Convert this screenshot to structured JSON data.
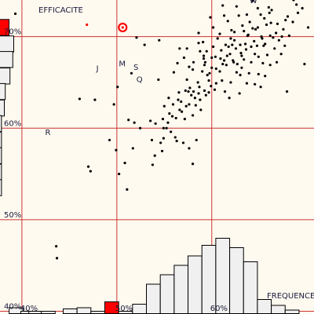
{
  "chart_data": {
    "type": "scatter",
    "ylabel": "EFFICACITE",
    "xlabel": "FREQUENCE",
    "xlim": [
      30,
      73
    ],
    "ylim": [
      39.7,
      74
    ],
    "x_ticks": [
      {
        "value": 33,
        "label": "40%"
      },
      {
        "value": 46,
        "label": "50%"
      },
      {
        "value": 59,
        "label": "60%"
      }
    ],
    "y_ticks": [
      {
        "value": 40,
        "label": "40%"
      },
      {
        "value": 50,
        "label": "50%"
      },
      {
        "value": 60,
        "label": "60%"
      },
      {
        "value": 70,
        "label": "70%"
      }
    ],
    "grid": true,
    "annotations": [
      {
        "text": "W",
        "x": 64.5,
        "y": 74
      },
      {
        "text": "J",
        "x": 43.5,
        "y": 66.6
      },
      {
        "text": "M",
        "x": 46.6,
        "y": 67.1
      },
      {
        "text": "S",
        "x": 48.6,
        "y": 66.7
      },
      {
        "text": "Q",
        "x": 49.0,
        "y": 65.4
      },
      {
        "text": "R",
        "x": 36.5,
        "y": 59.6
      }
    ],
    "highlight_point": {
      "x": 46.8,
      "y": 71.0,
      "color": "#ff0000"
    },
    "red_point": {
      "x": 41.9,
      "y": 71.3
    },
    "points": [
      [
        32.1,
        72.5
      ],
      [
        40.9,
        63.2
      ],
      [
        43.0,
        63.1
      ],
      [
        45.6,
        62.6
      ],
      [
        48.7,
        69.9
      ],
      [
        42.1,
        55.8
      ],
      [
        42.4,
        55.3
      ],
      [
        37.8,
        45.8
      ],
      [
        45.0,
        58.7
      ],
      [
        45.9,
        57.6
      ],
      [
        46.3,
        55.0
      ],
      [
        50.9,
        56.0
      ],
      [
        52.4,
        58.9
      ],
      [
        51.3,
        60.5
      ],
      [
        52.2,
        57.5
      ],
      [
        51.2,
        57.0
      ],
      [
        51.8,
        69.6
      ],
      [
        54.0,
        59.0
      ],
      [
        52.0,
        58.4
      ],
      [
        50.6,
        60.8
      ],
      [
        49.8,
        69.1
      ],
      [
        48.0,
        66.0
      ],
      [
        51.7,
        65.3
      ],
      [
        53.8,
        66.1
      ],
      [
        54.6,
        68.7
      ],
      [
        54.3,
        67.1
      ],
      [
        52.5,
        62.4
      ],
      [
        53.1,
        63.3
      ],
      [
        55.6,
        68.7
      ],
      [
        57.2,
        69.3
      ],
      [
        57.4,
        68.4
      ],
      [
        56.5,
        67.2
      ],
      [
        55.9,
        66.7
      ],
      [
        55.6,
        65.3
      ],
      [
        54.5,
        63.9
      ],
      [
        54.8,
        62.9
      ],
      [
        55.9,
        62.6
      ],
      [
        56.7,
        63.3
      ],
      [
        56.0,
        64.4
      ],
      [
        55.4,
        64.1
      ],
      [
        57.1,
        65.0
      ],
      [
        57.7,
        66.2
      ],
      [
        57.9,
        67.6
      ],
      [
        58.3,
        68.4
      ],
      [
        57.8,
        69.4
      ],
      [
        57.2,
        70.4
      ],
      [
        59.2,
        71.0
      ],
      [
        60.1,
        70.3
      ],
      [
        59.2,
        68.9
      ],
      [
        59.5,
        67.8
      ],
      [
        59.0,
        66.6
      ],
      [
        58.6,
        65.2
      ],
      [
        58.0,
        64.1
      ],
      [
        57.4,
        63.1
      ],
      [
        58.6,
        63.9
      ],
      [
        59.6,
        64.9
      ],
      [
        60.1,
        66.2
      ],
      [
        60.7,
        67.4
      ],
      [
        61.5,
        68.1
      ],
      [
        61.8,
        69.1
      ],
      [
        62.1,
        70.5
      ],
      [
        61.2,
        71.7
      ],
      [
        62.7,
        72.3
      ],
      [
        63.2,
        71.2
      ],
      [
        64.0,
        70.2
      ],
      [
        63.6,
        69.2
      ],
      [
        63.0,
        68.2
      ],
      [
        62.5,
        67.0
      ],
      [
        62.4,
        66.1
      ],
      [
        61.6,
        65.0
      ],
      [
        60.8,
        64.0
      ],
      [
        61.4,
        63.3
      ],
      [
        62.8,
        63.8
      ],
      [
        63.8,
        64.9
      ],
      [
        64.1,
        66.0
      ],
      [
        64.4,
        67.2
      ],
      [
        64.9,
        68.1
      ],
      [
        65.2,
        69.0
      ],
      [
        65.8,
        70.0
      ],
      [
        66.5,
        71.3
      ],
      [
        65.7,
        72.4
      ],
      [
        66.9,
        72.6
      ],
      [
        67.1,
        71.5
      ],
      [
        67.8,
        70.4
      ],
      [
        68.2,
        69.6
      ],
      [
        67.6,
        68.7
      ],
      [
        66.6,
        68.0
      ],
      [
        66.0,
        67.1
      ],
      [
        65.4,
        65.9
      ],
      [
        64.9,
        64.8
      ],
      [
        65.7,
        64.5
      ],
      [
        66.3,
        65.7
      ],
      [
        67.0,
        66.9
      ],
      [
        67.9,
        67.2
      ],
      [
        68.5,
        68.1
      ],
      [
        69.0,
        69.0
      ],
      [
        69.6,
        70.1
      ],
      [
        70.1,
        71.6
      ],
      [
        70.8,
        72.6
      ],
      [
        71.4,
        73.1
      ],
      [
        72.2,
        71.0
      ],
      [
        71.7,
        67.0
      ],
      [
        69.3,
        64.0
      ],
      [
        66.8,
        73.2
      ],
      [
        64.6,
        73.9
      ],
      [
        70.2,
        74.0
      ],
      [
        72.9,
        75.0
      ],
      [
        60.5,
        73.4
      ],
      [
        58.8,
        72.1
      ],
      [
        60.7,
        72.3
      ],
      [
        61.7,
        70.7
      ],
      [
        62.9,
        69.1
      ],
      [
        64.8,
        69.5
      ],
      [
        65.3,
        71.0
      ],
      [
        63.8,
        72.4
      ],
      [
        62.4,
        73.3
      ],
      [
        64.2,
        71.6
      ],
      [
        65.0,
        70.8
      ],
      [
        66.3,
        69.2
      ],
      [
        65.9,
        69.8
      ],
      [
        63.4,
        67.5
      ],
      [
        60.2,
        67.6
      ],
      [
        59.6,
        66.5
      ],
      [
        58.4,
        65.8
      ],
      [
        58.9,
        64.6
      ],
      [
        57.3,
        64.5
      ],
      [
        56.5,
        64.0
      ],
      [
        55.5,
        62.4
      ],
      [
        54.9,
        61.8
      ],
      [
        54.1,
        61.1
      ],
      [
        53.0,
        60.6
      ],
      [
        52.3,
        61.0
      ],
      [
        53.7,
        62.6
      ],
      [
        56.4,
        61.4
      ],
      [
        55.1,
        58.4
      ],
      [
        55.9,
        57.8
      ],
      [
        56.9,
        58.7
      ],
      [
        56.4,
        56.1
      ],
      [
        54.2,
        58.6
      ],
      [
        53.4,
        59.6
      ],
      [
        52.8,
        60.0
      ],
      [
        50.8,
        58.7
      ],
      [
        49.2,
        60.0
      ],
      [
        48.4,
        60.6
      ],
      [
        47.6,
        60.9
      ],
      [
        47.1,
        56.2
      ],
      [
        48.2,
        57.8
      ],
      [
        55.3,
        61.0
      ],
      [
        54.6,
        62.0
      ],
      [
        53.2,
        61.6
      ],
      [
        52.4,
        60.0
      ],
      [
        58.1,
        67.2
      ],
      [
        59.8,
        69.8
      ],
      [
        60.9,
        69.1
      ],
      [
        61.6,
        69.8
      ],
      [
        62.3,
        68.7
      ],
      [
        63.7,
        68.6
      ],
      [
        63.1,
        66.6
      ],
      [
        61.9,
        67.4
      ],
      [
        62.9,
        65.8
      ],
      [
        60.4,
        65.2
      ],
      [
        59.4,
        64.2
      ],
      [
        58.2,
        63.6
      ],
      [
        57.5,
        62.0
      ],
      [
        56.8,
        62.5
      ],
      [
        56.2,
        63.6
      ],
      [
        55.8,
        64.0
      ],
      [
        60.3,
        68.5
      ],
      [
        61.0,
        66.9
      ],
      [
        61.3,
        68.9
      ],
      [
        63.9,
        70.1
      ],
      [
        64.6,
        70.9
      ],
      [
        67.4,
        69.9
      ],
      [
        68.8,
        70.8
      ],
      [
        69.4,
        72.2
      ],
      [
        70.6,
        73.5
      ],
      [
        67.2,
        72.9
      ],
      [
        66.2,
        72.0
      ],
      [
        65.3,
        73.1
      ],
      [
        63.4,
        70.6
      ],
      [
        62.1,
        69.6
      ],
      [
        61.1,
        67.9
      ],
      [
        58.7,
        66.0
      ],
      [
        57.2,
        63.8
      ],
      [
        54.4,
        63.1
      ],
      [
        53.6,
        61.3
      ],
      [
        57.9,
        67.9
      ],
      [
        56.4,
        66.4
      ],
      [
        55.2,
        67.7
      ],
      [
        58.0,
        66.9
      ],
      [
        59.0,
        67.7
      ],
      [
        60.5,
        67.0
      ],
      [
        62.0,
        67.2
      ],
      [
        63.1,
        67.9
      ],
      [
        64.4,
        68.9
      ],
      [
        65.4,
        67.8
      ],
      [
        66.1,
        69.0
      ],
      [
        67.0,
        70.1
      ],
      [
        68.0,
        71.4
      ],
      [
        69.1,
        71.8
      ],
      [
        68.6,
        70.0
      ],
      [
        46.1,
        64.5
      ],
      [
        47.4,
        53.3
      ],
      [
        37.7,
        47.1
      ]
    ],
    "histogram_x": {
      "bins": [
        {
          "x": 32.2,
          "count": 0.5
        },
        {
          "x": 33.8,
          "count": 0.2
        },
        {
          "x": 34.9,
          "count": 0.2
        },
        {
          "x": 36.6,
          "count": 0.2
        },
        {
          "x": 39.6,
          "count": 0.4
        },
        {
          "x": 41.5,
          "count": 0.5
        },
        {
          "x": 43.4,
          "count": 0.2
        },
        {
          "x": 45.3,
          "count": 1.0,
          "color": "#ff0000"
        },
        {
          "x": 47.2,
          "count": 0.2
        },
        {
          "x": 49.1,
          "count": 0.8
        },
        {
          "x": 51.0,
          "count": 2.5
        },
        {
          "x": 52.9,
          "count": 3.3
        },
        {
          "x": 54.8,
          "count": 4.1
        },
        {
          "x": 56.7,
          "count": 4.9
        },
        {
          "x": 58.6,
          "count": 5.8
        },
        {
          "x": 60.5,
          "count": 6.4
        },
        {
          "x": 62.4,
          "count": 5.6
        },
        {
          "x": 64.3,
          "count": 4.4
        },
        {
          "x": 66.2,
          "count": 1.2
        },
        {
          "x": 68.1,
          "count": 0.7
        },
        {
          "x": 70.0,
          "count": 0.3
        }
      ]
    },
    "histogram_y": {
      "bins": [
        {
          "y": 71.0,
          "count": 1.0,
          "color": "#ff0000"
        },
        {
          "y": 69.2,
          "count": 1.5
        },
        {
          "y": 67.5,
          "count": 1.4
        },
        {
          "y": 65.7,
          "count": 1.1
        },
        {
          "y": 64.0,
          "count": 0.6
        },
        {
          "y": 62.2,
          "count": 0.5
        },
        {
          "y": 60.5,
          "count": 0.2
        },
        {
          "y": 58.7,
          "count": 0.2
        },
        {
          "y": 57.0,
          "count": 0.2
        },
        {
          "y": 55.2,
          "count": 0.2
        },
        {
          "y": 53.5,
          "count": 0.2
        }
      ]
    },
    "colors": {
      "background": "#fffaf0",
      "grid": "#cc3333",
      "points": "#000000",
      "highlight": "#ff0000",
      "bars_fill": "#f0f0f0",
      "bars_stroke": "#000000"
    }
  }
}
